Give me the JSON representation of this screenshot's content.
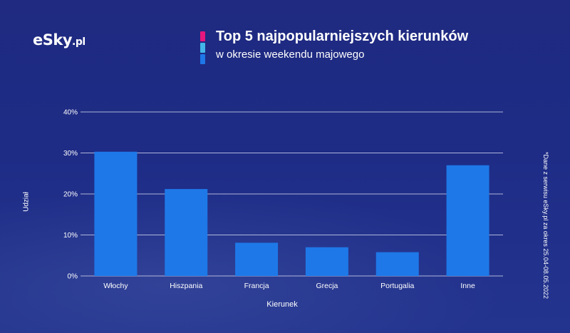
{
  "brand": {
    "logo_main": "eSky",
    "logo_suffix": ".pl"
  },
  "colors": {
    "background": "#1e2c86",
    "bar": "#1e78e8",
    "gridline": "#c8cde6",
    "accent_top": "#e5177e",
    "accent_mid": "#43b5e8",
    "accent_bottom": "#1e78e8"
  },
  "footnote": "*Dane z serwisu eSky.pl za okres 25.04-08.05.2022",
  "chart_data": {
    "type": "bar",
    "title": "Top 5 najpopularniejszych kierunków",
    "subtitle": "w okresie weekendu majowego",
    "xlabel": "Kierunek",
    "ylabel": "Udział",
    "categories": [
      "Włochy",
      "Hiszpania",
      "Francja",
      "Grecja",
      "Portugalia",
      "Inne"
    ],
    "values": [
      30.3,
      21.2,
      8.1,
      7.0,
      5.8,
      27.0
    ],
    "value_unit": "%",
    "ylim": [
      0,
      40
    ],
    "yticks": [
      0,
      10,
      20,
      30,
      40
    ],
    "ytick_labels": [
      "0%",
      "10%",
      "20%",
      "30%",
      "40%"
    ],
    "grid": true,
    "legend": "none"
  }
}
